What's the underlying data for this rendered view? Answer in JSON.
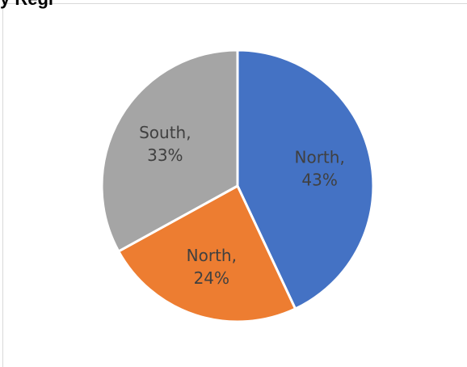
{
  "chart_data": {
    "type": "pie",
    "title": "",
    "title_fragment": "y Regi",
    "slices": [
      {
        "label": "North",
        "value": 43,
        "percent_label": "43%",
        "color": "#4472c4",
        "label_color": "#404040"
      },
      {
        "label": "North",
        "value": 24,
        "percent_label": "24%",
        "color": "#ed7d31",
        "label_color": "#404040"
      },
      {
        "label": "South",
        "value": 33,
        "percent_label": "33%",
        "color": "#a5a5a5",
        "label_color": "#404040"
      }
    ],
    "legend": "none",
    "slice_border_color": "#ffffff"
  }
}
